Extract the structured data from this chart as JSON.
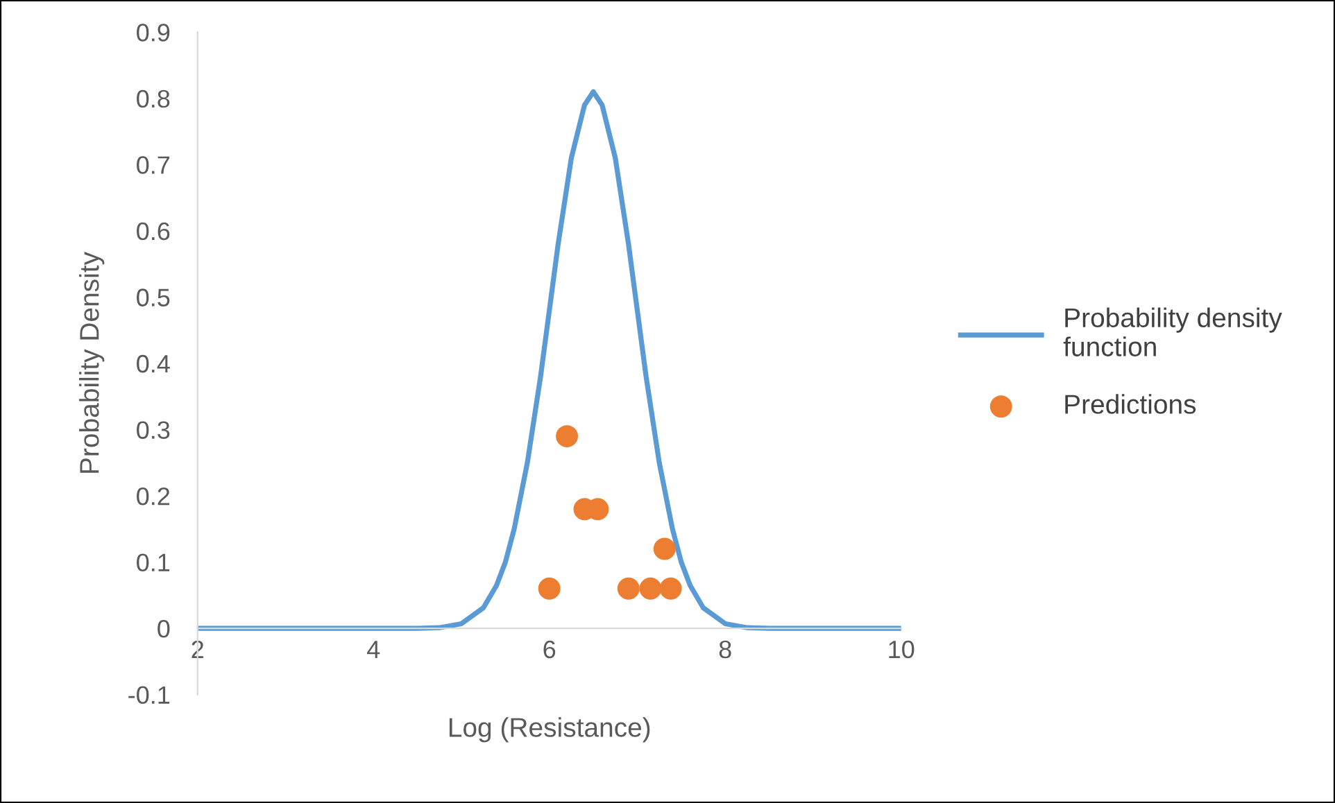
{
  "chart_data": {
    "type": "line",
    "xlabel": "Log (Resistance)",
    "ylabel": "Probability Density",
    "xlim": [
      2,
      10
    ],
    "xticks": [
      2,
      4,
      6,
      8,
      10
    ],
    "ylim": [
      -0.1,
      0.9
    ],
    "yticks": [
      -0.1,
      0,
      0.1,
      0.2,
      0.3,
      0.4,
      0.5,
      0.6,
      0.7,
      0.8,
      0.9
    ],
    "grid": false,
    "legend": "right",
    "series": [
      {
        "name": "Probability density\nfunction",
        "color": "#5b9bd5",
        "marker": "none",
        "line_style": "solid",
        "x": [
          2,
          3,
          4,
          4.5,
          4.75,
          5,
          5.25,
          5.4,
          5.5,
          5.6,
          5.75,
          5.9,
          6,
          6.1,
          6.25,
          6.4,
          6.5,
          6.6,
          6.75,
          6.9,
          7,
          7.1,
          7.25,
          7.4,
          7.5,
          7.6,
          7.75,
          8,
          8.25,
          8.5,
          9,
          10
        ],
        "values": [
          0,
          0,
          0,
          0,
          0.001,
          0.007,
          0.031,
          0.065,
          0.1,
          0.15,
          0.25,
          0.38,
          0.48,
          0.58,
          0.71,
          0.79,
          0.81,
          0.79,
          0.71,
          0.58,
          0.48,
          0.38,
          0.25,
          0.15,
          0.1,
          0.065,
          0.031,
          0.007,
          0.001,
          0,
          0,
          0
        ]
      },
      {
        "name": "Predictions",
        "type": "scatter",
        "color": "#ed7d31",
        "marker": "circle",
        "x": [
          6.0,
          6.2,
          6.4,
          6.55,
          6.9,
          7.15,
          7.31,
          7.38
        ],
        "values": [
          0.06,
          0.29,
          0.18,
          0.18,
          0.06,
          0.06,
          0.12,
          0.06
        ]
      }
    ]
  }
}
